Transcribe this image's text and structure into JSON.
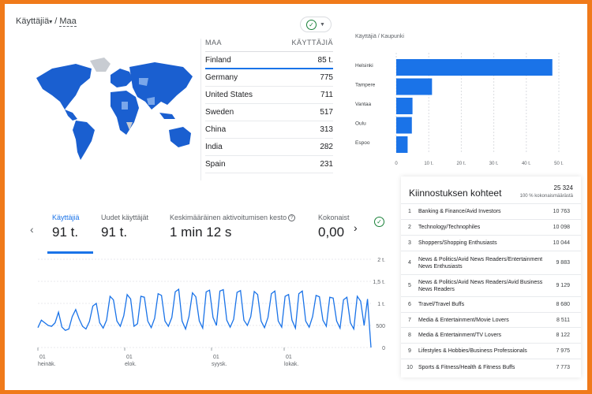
{
  "header": {
    "title": "Käyttäjiä",
    "separator": " / ",
    "dimension": "Maa"
  },
  "country_table": {
    "col_country": "MAA",
    "col_users": "KÄYTTÄJIÄ",
    "rows": [
      {
        "country": "Finland",
        "users": "85 t.",
        "share": 1.0
      },
      {
        "country": "Germany",
        "users": "775"
      },
      {
        "country": "United States",
        "users": "711"
      },
      {
        "country": "Sweden",
        "users": "517"
      },
      {
        "country": "China",
        "users": "313"
      },
      {
        "country": "India",
        "users": "282"
      },
      {
        "country": "Spain",
        "users": "231"
      }
    ]
  },
  "city_chart": {
    "title": "Käyttäjiä / Kaupunki"
  },
  "kpis": {
    "users_label": "Käyttäjiä",
    "users_value": "91 t.",
    "new_users_label": "Uudet käyttäjät",
    "new_users_value": "91 t.",
    "engagement_label": "Keskimääräinen aktivoitumisen kesto",
    "engagement_value": "1 min 12 s",
    "total_label": "Kokonaist",
    "total_value": "0,00"
  },
  "interests": {
    "title": "Kiinnostuksen kohteet",
    "total": "25 324",
    "subtitle": "100 % kokonaismäärästä",
    "rows": [
      {
        "n": "1",
        "label": "Banking & Finance/Avid Investors",
        "value": "10 763"
      },
      {
        "n": "2",
        "label": "Technology/Technophiles",
        "value": "10 098"
      },
      {
        "n": "3",
        "label": "Shoppers/Shopping Enthusiasts",
        "value": "10 044"
      },
      {
        "n": "4",
        "label": "News & Politics/Avid News Readers/Entertainment News Enthusiasts",
        "value": "9 883"
      },
      {
        "n": "5",
        "label": "News & Politics/Avid News Readers/Avid Business News Readers",
        "value": "9 129"
      },
      {
        "n": "6",
        "label": "Travel/Travel Buffs",
        "value": "8 680"
      },
      {
        "n": "7",
        "label": "Media & Entertainment/Movie Lovers",
        "value": "8 511"
      },
      {
        "n": "8",
        "label": "Media & Entertainment/TV Lovers",
        "value": "8 122"
      },
      {
        "n": "9",
        "label": "Lifestyles & Hobbies/Business Professionals",
        "value": "7 975"
      },
      {
        "n": "10",
        "label": "Sports & Fitness/Health & Fitness Buffs",
        "value": "7 773"
      }
    ]
  },
  "chart_data": [
    {
      "type": "bar",
      "orientation": "horizontal",
      "title": "Käyttäjiä / Kaupunki",
      "categories": [
        "Helsinki",
        "Tampere",
        "Vantaa",
        "Oulu",
        "Espoo"
      ],
      "values": [
        48000,
        11000,
        5000,
        4800,
        3500
      ],
      "xlim": [
        0,
        50000
      ],
      "x_ticks": [
        "0",
        "10 t.",
        "20 t.",
        "30 t.",
        "40 t.",
        "50 t."
      ],
      "color": "#1a73e8"
    },
    {
      "type": "line",
      "x_ticks": [
        {
          "day": "01",
          "month": "heinäk."
        },
        {
          "day": "01",
          "month": "elok."
        },
        {
          "day": "01",
          "month": "syysk."
        },
        {
          "day": "01",
          "month": "lokak."
        }
      ],
      "y_ticks": [
        "2 t.",
        "1,5 t.",
        "1 t.",
        "500",
        "0"
      ],
      "ylim": [
        0,
        2000
      ],
      "values": [
        450,
        620,
        560,
        500,
        480,
        560,
        800,
        460,
        390,
        420,
        700,
        860,
        650,
        480,
        420,
        590,
        940,
        1000,
        560,
        440,
        620,
        1160,
        1080,
        600,
        480,
        720,
        1200,
        1100,
        480,
        540,
        1160,
        1140,
        600,
        450,
        660,
        1220,
        1180,
        600,
        480,
        680,
        1260,
        1320,
        600,
        420,
        700,
        1240,
        1150,
        600,
        440,
        1260,
        1300,
        680,
        500,
        1280,
        1310,
        620,
        460,
        640,
        1250,
        1290,
        620,
        500,
        700,
        1270,
        1200,
        600,
        450,
        680,
        1220,
        1280,
        600,
        460,
        1160,
        1200,
        620,
        440,
        1220,
        1280,
        600,
        460,
        700,
        1180,
        1150,
        620,
        480,
        1140,
        1120,
        600,
        440,
        1080,
        1140,
        560,
        420,
        1160,
        1050,
        500,
        1100,
        0
      ],
      "color": "#1a73e8"
    }
  ],
  "colors": {
    "accent": "#1a73e8",
    "frame": "#f07a1a",
    "success": "#188038"
  },
  "icons": {
    "dimension_caret": "chevron-down-icon",
    "status": "check-circle-icon",
    "nav_prev": "chevron-left-icon",
    "nav_next": "chevron-right-icon",
    "help": "help-icon"
  }
}
